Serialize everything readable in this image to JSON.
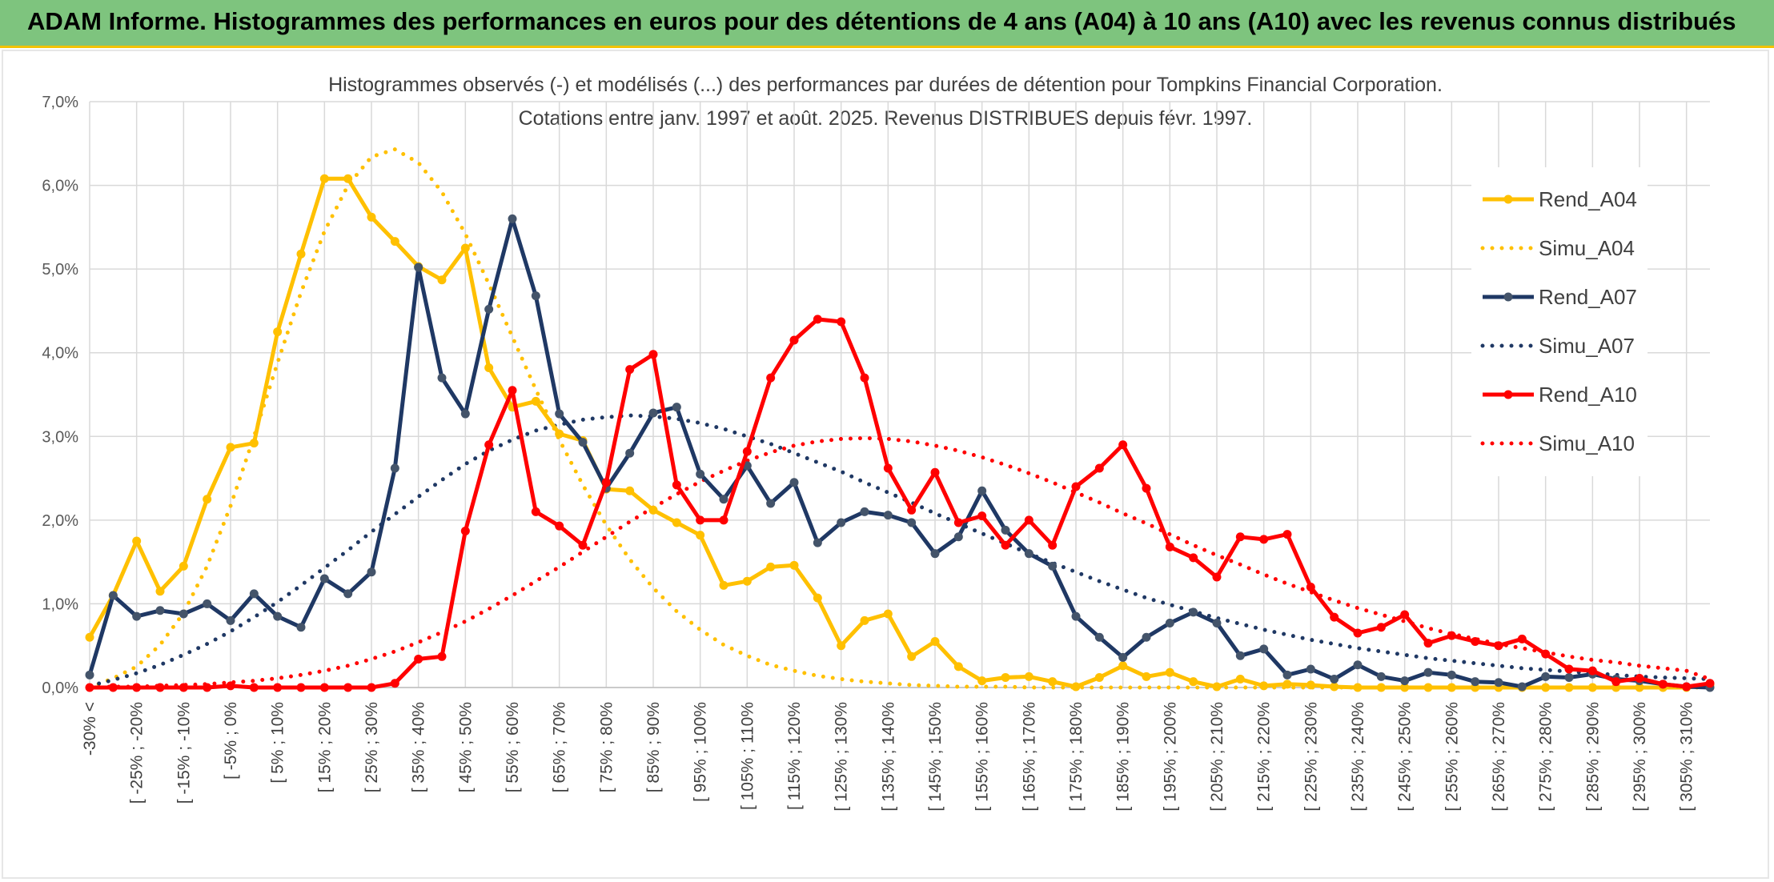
{
  "banner": {
    "title": "ADAM Informe. Histogrammes des performances en euros pour des détentions de 4 ans (A04) à 10 ans (A10) avec les revenus connus distribués"
  },
  "chart_data": {
    "type": "line",
    "title": "Histogrammes observés (-) et modélisés (...) des performances par durées de détention pour Tompkins Financial Corporation.",
    "subtitle": "Cotations entre janv. 1997 et août. 2025. Revenus DISTRIBUES depuis févr. 1997.",
    "ylim": [
      0,
      7
    ],
    "yticks": [
      "0,0%",
      "1,0%",
      "2,0%",
      "3,0%",
      "4,0%",
      "5,0%",
      "6,0%",
      "7,0%"
    ],
    "x_tick_labels": [
      "-30% <",
      "[ -25% ; -20%",
      "[ -15% ; -10%",
      "[ -5% ; 0%",
      "[ 5% ; 10%",
      "[ 15% ; 20%",
      "[ 25% ; 30%",
      "[ 35% ; 40%",
      "[ 45% ; 50%",
      "[ 55% ; 60%",
      "[ 65% ; 70%",
      "[ 75% ; 80%",
      "[ 85% ; 90%",
      "[ 95% ; 100%",
      "[ 105% ; 110%",
      "[ 115% ; 120%",
      "[ 125% ; 130%",
      "[ 135% ; 140%",
      "[ 145% ; 150%",
      "[ 155% ; 160%",
      "[ 165% ; 170%",
      "[ 175% ; 180%",
      "[ 185% ; 190%",
      "[ 195% ; 200%",
      "[ 205% ; 210%",
      "[ 215% ; 220%",
      "[ 225% ; 230%",
      "[ 235% ; 240%",
      "[ 245% ; 250%",
      "[ 255% ; 260%",
      "[ 265% ; 270%",
      "[ 275% ; 280%",
      "[ 285% ; 290%",
      "[ 295% ; 300%",
      "[ 305% ; 310%"
    ],
    "grid": true,
    "legend_position": "right",
    "series": [
      {
        "name": "Rend_A04",
        "style": "solid",
        "color": "#ffc000",
        "values": [
          0.6,
          1.1,
          1.75,
          1.15,
          1.45,
          2.25,
          2.87,
          2.92,
          4.25,
          5.18,
          6.08,
          6.08,
          5.62,
          5.33,
          5.03,
          4.87,
          5.25,
          3.82,
          3.35,
          3.42,
          3.03,
          2.95,
          2.37,
          2.35,
          2.12,
          1.97,
          1.82,
          1.22,
          1.27,
          1.44,
          1.46,
          1.07,
          0.5,
          0.8,
          0.88,
          0.37,
          0.55,
          0.25,
          0.08,
          0.12,
          0.13,
          0.07,
          0.01,
          0.12,
          0.26,
          0.13,
          0.18,
          0.07,
          0.01,
          0.1,
          0.02,
          0.04,
          0.03,
          0.01,
          0.0,
          0.0,
          0.0,
          0.0,
          0.0,
          0.0,
          0.0,
          0.0,
          0.0,
          0.0,
          0.0,
          0.0,
          0.0,
          0.0,
          0.0,
          0.03
        ]
      },
      {
        "name": "Simu_A04",
        "style": "dotted",
        "color": "#ffc000",
        "values": [
          0.0,
          0.11,
          0.25,
          0.51,
          0.89,
          1.45,
          2.17,
          3.0,
          3.88,
          4.72,
          5.45,
          6.0,
          6.34,
          6.43,
          6.27,
          5.92,
          5.42,
          4.82,
          4.19,
          3.56,
          2.96,
          2.42,
          1.94,
          1.53,
          1.19,
          0.91,
          0.69,
          0.51,
          0.38,
          0.27,
          0.2,
          0.14,
          0.1,
          0.07,
          0.05,
          0.03,
          0.02,
          0.01,
          0.01,
          0.01,
          0.0,
          0.0,
          0.0,
          0.0,
          0.0,
          0.0,
          0.0,
          0.0,
          0.0,
          0.0,
          0.0,
          0.0,
          0.0,
          0.0,
          0.0,
          0.0,
          0.0,
          0.0,
          0.0,
          0.0,
          0.0,
          0.0,
          0.0,
          0.0,
          0.0,
          0.0,
          0.0,
          0.0,
          0.0,
          0.0
        ]
      },
      {
        "name": "Rend_A07",
        "style": "solid",
        "color": "#1f3864",
        "values": [
          0.15,
          1.1,
          0.85,
          0.92,
          0.88,
          1.0,
          0.8,
          1.12,
          0.85,
          0.72,
          1.3,
          1.12,
          1.38,
          2.62,
          5.02,
          3.7,
          3.27,
          4.52,
          5.6,
          4.68,
          3.27,
          2.93,
          2.38,
          2.8,
          3.28,
          3.35,
          2.55,
          2.25,
          2.65,
          2.2,
          2.45,
          1.73,
          1.97,
          2.1,
          2.06,
          1.97,
          1.6,
          1.8,
          2.35,
          1.88,
          1.6,
          1.45,
          0.85,
          0.6,
          0.36,
          0.6,
          0.77,
          0.9,
          0.77,
          0.38,
          0.46,
          0.15,
          0.22,
          0.1,
          0.27,
          0.13,
          0.08,
          0.18,
          0.15,
          0.07,
          0.06,
          0.01,
          0.13,
          0.12,
          0.16,
          0.1,
          0.08,
          0.04,
          0.01,
          0.0
        ]
      },
      {
        "name": "Simu_A07",
        "style": "dotted",
        "color": "#1f3864",
        "values": [
          0.02,
          0.09,
          0.17,
          0.27,
          0.39,
          0.52,
          0.67,
          0.84,
          1.02,
          1.22,
          1.43,
          1.64,
          1.86,
          2.07,
          2.28,
          2.48,
          2.67,
          2.83,
          2.96,
          3.07,
          3.14,
          3.2,
          3.23,
          3.25,
          3.24,
          3.21,
          3.16,
          3.09,
          3.0,
          2.91,
          2.8,
          2.69,
          2.58,
          2.45,
          2.33,
          2.21,
          2.08,
          1.96,
          1.84,
          1.72,
          1.6,
          1.49,
          1.38,
          1.27,
          1.17,
          1.07,
          0.99,
          0.91,
          0.83,
          0.76,
          0.69,
          0.63,
          0.57,
          0.52,
          0.47,
          0.43,
          0.39,
          0.35,
          0.32,
          0.29,
          0.26,
          0.23,
          0.21,
          0.19,
          0.17,
          0.15,
          0.13,
          0.12,
          0.11,
          0.1
        ]
      },
      {
        "name": "Rend_A10",
        "style": "solid",
        "color": "#ff0000",
        "values": [
          0.0,
          0.0,
          0.0,
          0.0,
          0.0,
          0.0,
          0.02,
          0.0,
          0.0,
          0.0,
          0.0,
          0.0,
          0.0,
          0.05,
          0.34,
          0.37,
          1.87,
          2.9,
          3.55,
          2.1,
          1.93,
          1.7,
          2.45,
          3.8,
          3.98,
          2.42,
          2.0,
          2.0,
          2.82,
          3.7,
          4.15,
          4.4,
          4.37,
          3.7,
          2.62,
          2.12,
          2.57,
          1.97,
          2.05,
          1.7,
          2.0,
          1.7,
          2.4,
          2.62,
          2.9,
          2.38,
          1.68,
          1.55,
          1.32,
          1.8,
          1.77,
          1.83,
          1.2,
          0.84,
          0.65,
          0.72,
          0.87,
          0.53,
          0.62,
          0.55,
          0.5,
          0.58,
          0.4,
          0.22,
          0.2,
          0.07,
          0.11,
          0.04,
          0.01,
          0.05
        ]
      },
      {
        "name": "Simu_A10",
        "style": "dotted",
        "color": "#ff0000",
        "values": [
          0.0,
          0.01,
          0.01,
          0.02,
          0.03,
          0.04,
          0.06,
          0.08,
          0.11,
          0.15,
          0.2,
          0.26,
          0.34,
          0.43,
          0.54,
          0.66,
          0.79,
          0.94,
          1.1,
          1.27,
          1.44,
          1.62,
          1.8,
          1.98,
          2.15,
          2.31,
          2.46,
          2.59,
          2.71,
          2.81,
          2.89,
          2.94,
          2.97,
          2.98,
          2.97,
          2.94,
          2.89,
          2.83,
          2.75,
          2.66,
          2.56,
          2.45,
          2.33,
          2.21,
          2.08,
          1.96,
          1.83,
          1.7,
          1.58,
          1.47,
          1.35,
          1.24,
          1.14,
          1.04,
          0.95,
          0.87,
          0.79,
          0.71,
          0.64,
          0.58,
          0.52,
          0.47,
          0.42,
          0.37,
          0.33,
          0.3,
          0.26,
          0.23,
          0.2,
          0.1
        ]
      }
    ]
  }
}
